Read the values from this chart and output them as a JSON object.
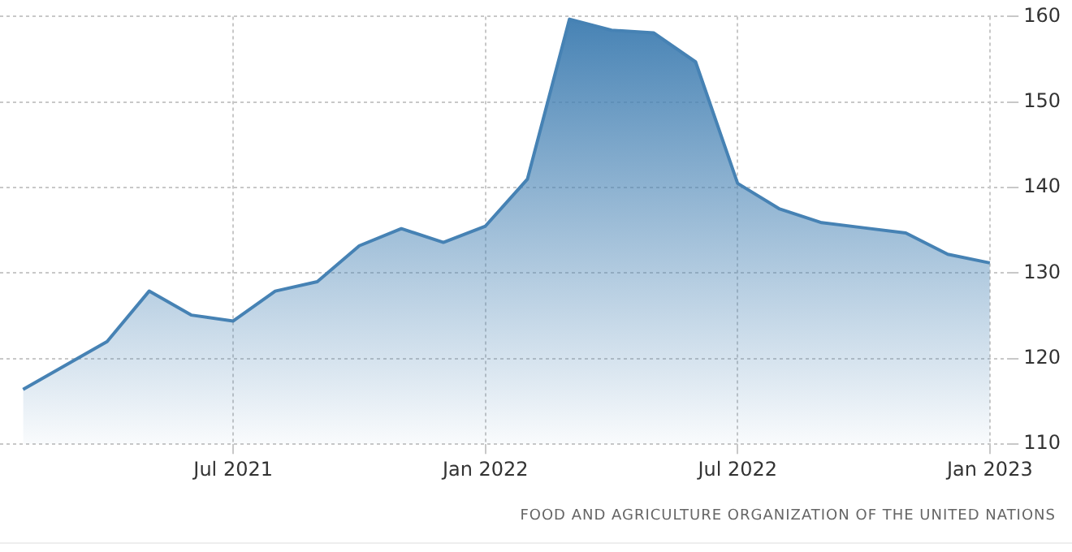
{
  "chart_data": {
    "type": "area",
    "x": [
      "2021-02",
      "2021-03",
      "2021-04",
      "2021-05",
      "2021-06",
      "2021-07",
      "2021-08",
      "2021-09",
      "2021-10",
      "2021-11",
      "2021-12",
      "2022-01",
      "2022-02",
      "2022-03",
      "2022-04",
      "2022-05",
      "2022-06",
      "2022-07",
      "2022-08",
      "2022-09",
      "2022-10",
      "2022-11",
      "2022-12",
      "2023-01"
    ],
    "series": [
      {
        "color": "#4682b4",
        "values": [
          116.4,
          119.2,
          122,
          127.9,
          125.1,
          124.4,
          127.9,
          129,
          133.2,
          135.2,
          133.6,
          135.5,
          141,
          159.7,
          158.4,
          158.1,
          154.7,
          140.5,
          137.5,
          135.9,
          135.3,
          134.7,
          132.2,
          131.2
        ]
      }
    ],
    "xlim": [
      "2021-01-15",
      "2023-01-15"
    ],
    "xticks": [
      {
        "value": "2021-07",
        "label": "Jul 2021"
      },
      {
        "value": "2022-01",
        "label": "Jan 2022"
      },
      {
        "value": "2022-07",
        "label": "Jul 2022"
      },
      {
        "value": "2023-01",
        "label": "Jan 2023"
      }
    ],
    "ylim": [
      110,
      160
    ],
    "yticks": [
      110,
      120,
      130,
      140,
      150,
      160
    ],
    "grid": true,
    "legend": false,
    "marker": "none",
    "line_style": "solid",
    "annotations": [
      "FOOD AND AGRICULTURE ORGANIZATION OF THE UNITED NATIONS"
    ]
  }
}
